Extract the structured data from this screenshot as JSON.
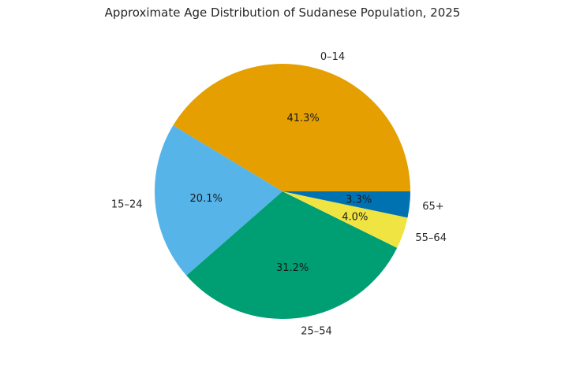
{
  "chart_data": {
    "type": "pie",
    "title": "Approximate Age Distribution of Sudanese Population, 2025",
    "labels": [
      "0–14",
      "15–24",
      "25–54",
      "55–64",
      "65+"
    ],
    "values": [
      41.3,
      20.1,
      31.2,
      4.0,
      3.3
    ],
    "pct_labels": [
      "41.3%",
      "20.1%",
      "31.2%",
      "4.0%",
      "3.3%"
    ],
    "colors": [
      "#E69F00",
      "#56B4E9",
      "#009E73",
      "#F0E442",
      "#0072B2"
    ],
    "start_angle_deg": 0,
    "direction": "counterclockwise",
    "label_distance": 1.1,
    "pct_distance": 0.6,
    "legend": "none",
    "background_color": "#ffffff",
    "text_color": "#262626"
  }
}
